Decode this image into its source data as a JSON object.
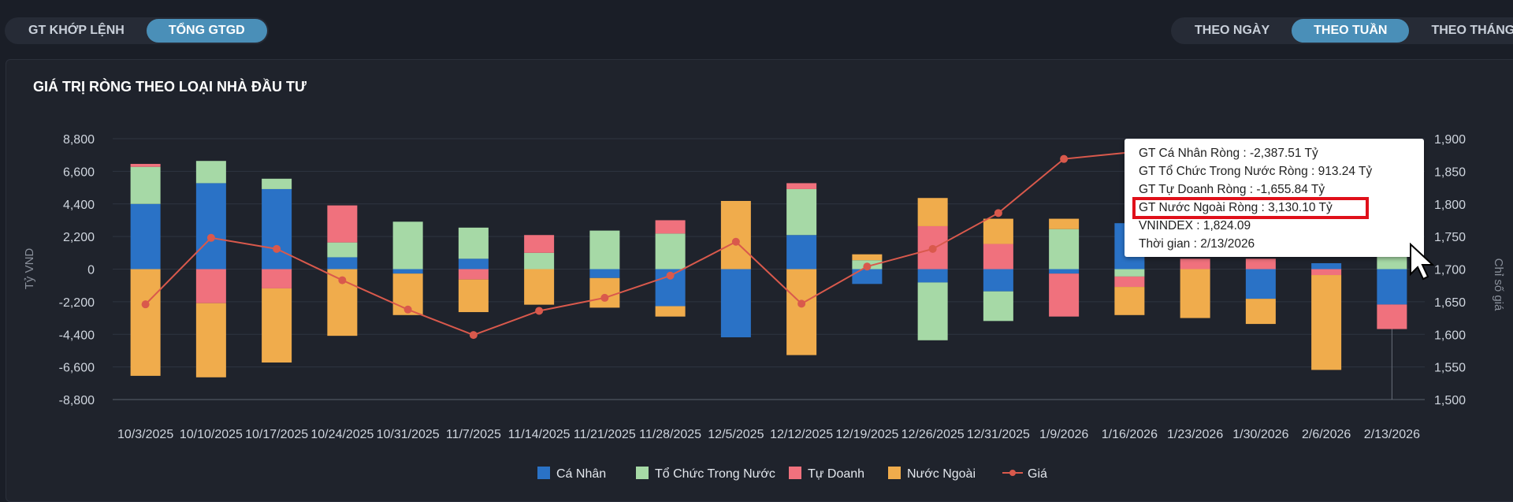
{
  "toggles": {
    "metric": [
      "GT KHỚP LỆNH",
      "TỔNG GTGD"
    ],
    "metric_active": 1,
    "period": [
      "THEO NGÀY",
      "THEO TUẦN",
      "THEO THÁNG"
    ],
    "period_active": 1
  },
  "chart_data": {
    "type": "bar",
    "title": "GIÁ TRỊ RÒNG THEO LOẠI NHÀ ĐẦU TƯ",
    "ylabel": "Tỷ VND",
    "y2label": "Chỉ số giá",
    "ylim": [
      -8800,
      8800
    ],
    "yticks": [
      "8,800",
      "6,600",
      "4,400",
      "2,200",
      "0",
      "-2,200",
      "-4,400",
      "-6,600",
      "-8,800"
    ],
    "y2lim": [
      1500,
      1900
    ],
    "y2ticks": [
      "1,900",
      "1,850",
      "1,800",
      "1,750",
      "1,700",
      "1,650",
      "1,600",
      "1,550",
      "1,500"
    ],
    "stacked": true,
    "categories": [
      "10/3/2025",
      "10/10/2025",
      "10/17/2025",
      "10/24/2025",
      "10/31/2025",
      "11/7/2025",
      "11/14/2025",
      "11/21/2025",
      "11/28/2025",
      "12/5/2025",
      "12/12/2025",
      "12/19/2025",
      "12/26/2025",
      "12/31/2025",
      "1/9/2026",
      "1/16/2026",
      "1/23/2026",
      "1/30/2026",
      "2/6/2026",
      "2/13/2026"
    ],
    "series": [
      {
        "name": "Cá Nhân",
        "color": "#2a72c6",
        "values": [
          4400,
          5800,
          5400,
          800,
          -300,
          700,
          0,
          -600,
          -2500,
          -4600,
          2300,
          -1000,
          -900,
          -1500,
          -300,
          3100,
          0,
          -2000,
          400,
          -2387.51
        ]
      },
      {
        "name": "Tổ Chức Trong Nước",
        "color": "#a6d9a6",
        "values": [
          2500,
          1500,
          700,
          1000,
          3200,
          2100,
          1100,
          2600,
          2400,
          0,
          3100,
          600,
          -3900,
          -2000,
          2700,
          -500,
          0,
          0,
          0,
          913.24
        ]
      },
      {
        "name": "Tự Doanh",
        "color": "#f0717d",
        "values": [
          200,
          -2300,
          -1300,
          2500,
          0,
          -700,
          1200,
          0,
          900,
          0,
          400,
          0,
          2900,
          1700,
          -2900,
          -700,
          700,
          700,
          -400,
          -1655.84
        ]
      },
      {
        "name": "Nước Ngoài",
        "color": "#f0ac4c",
        "values": [
          -7200,
          -5000,
          -5000,
          -4500,
          -2800,
          -2200,
          -2400,
          -2000,
          -700,
          4600,
          -5800,
          400,
          1900,
          1700,
          700,
          -1900,
          -3300,
          -1700,
          -6400,
          3130.1
        ]
      },
      {
        "name": "Giá",
        "color": "#d9594c",
        "type": "line",
        "axis": "right",
        "values": [
          1646,
          1748,
          1731,
          1683,
          1638,
          1599,
          1636,
          1656,
          1690,
          1742,
          1647,
          1704,
          1731,
          1786,
          1869,
          1879,
          1882,
          1877,
          1879,
          1824.09
        ]
      }
    ],
    "grid": true,
    "legend": "bottom-center"
  },
  "tooltip": {
    "lines": [
      "GT Cá Nhân Ròng  : -2,387.51 Tỷ",
      "GT Tổ Chức Trong Nước Ròng : 913.24 Tỷ",
      "GT Tự Doanh Ròng : -1,655.84 Tỷ",
      "GT Nước Ngoài Ròng : 3,130.10 Tỷ",
      "VNINDEX : 1,824.09",
      "Thời gian : 2/13/2026"
    ]
  }
}
